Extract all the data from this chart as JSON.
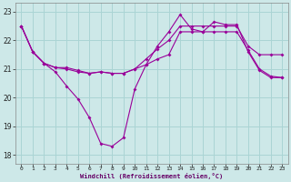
{
  "xlabel": "Windchill (Refroidissement éolien,°C)",
  "background_color": "#cde8e8",
  "grid_color": "#b0d8d8",
  "line_color": "#990099",
  "xlim": [
    -0.5,
    23.5
  ],
  "ylim": [
    17.7,
    23.3
  ],
  "yticks": [
    18,
    19,
    20,
    21,
    22,
    23
  ],
  "xticks": [
    0,
    1,
    2,
    3,
    4,
    5,
    6,
    7,
    8,
    9,
    10,
    11,
    12,
    13,
    14,
    15,
    16,
    17,
    18,
    19,
    20,
    21,
    22,
    23
  ],
  "line1_x": [
    0,
    1,
    2,
    3,
    4,
    5,
    6,
    7,
    8,
    9,
    10,
    11,
    12,
    13,
    14,
    15,
    16,
    17,
    18,
    19,
    20,
    21,
    22,
    23
  ],
  "line1_y": [
    22.5,
    21.6,
    21.2,
    20.9,
    20.4,
    19.95,
    19.3,
    18.4,
    18.3,
    18.6,
    20.3,
    21.15,
    21.8,
    22.3,
    22.9,
    22.4,
    22.3,
    22.65,
    22.55,
    22.55,
    21.6,
    20.95,
    20.7,
    20.7
  ],
  "line2_x": [
    0,
    1,
    2,
    3,
    4,
    5,
    6,
    7,
    8,
    9,
    10,
    11,
    12,
    13,
    14,
    15,
    16,
    17,
    18,
    19,
    20,
    21,
    22,
    23
  ],
  "line2_y": [
    22.5,
    21.6,
    21.2,
    21.05,
    21.0,
    20.9,
    20.85,
    20.9,
    20.85,
    20.85,
    21.0,
    21.15,
    21.35,
    21.5,
    22.3,
    22.3,
    22.3,
    22.3,
    22.3,
    22.3,
    21.65,
    21.0,
    20.75,
    20.7
  ],
  "line3_x": [
    0,
    1,
    2,
    3,
    4,
    5,
    6,
    7,
    8,
    9,
    10,
    11,
    12,
    13,
    14,
    15,
    16,
    17,
    18,
    19,
    20,
    21,
    22,
    23
  ],
  "line3_y": [
    22.5,
    21.6,
    21.2,
    21.05,
    21.05,
    20.95,
    20.85,
    20.9,
    20.85,
    20.85,
    21.0,
    21.35,
    21.7,
    22.0,
    22.5,
    22.5,
    22.5,
    22.5,
    22.5,
    22.5,
    21.8,
    21.5,
    21.5,
    21.5
  ]
}
